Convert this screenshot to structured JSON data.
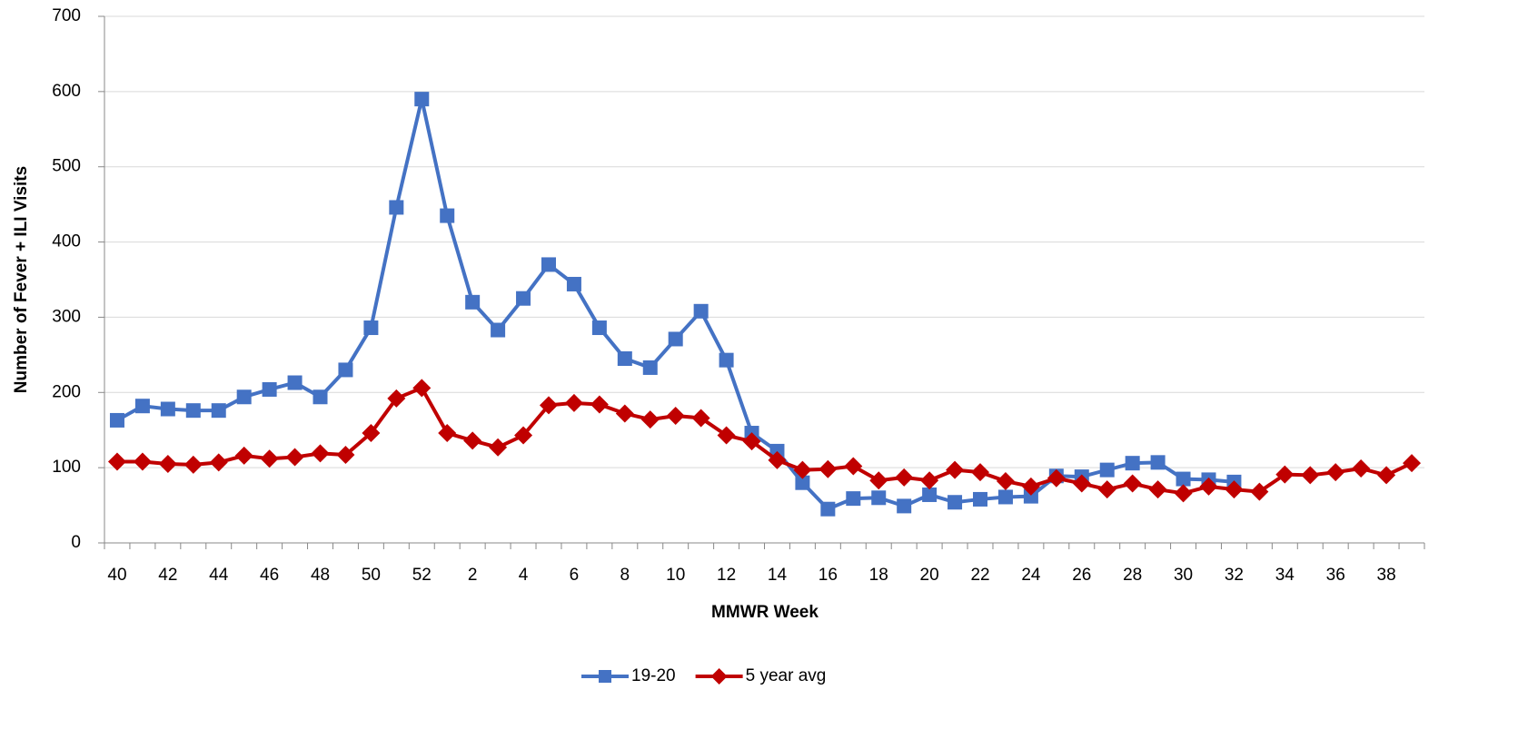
{
  "chart_data": {
    "type": "line",
    "x_label": "MMWR Week",
    "y_label": "Number of Fever + ILI Visits",
    "categories": [
      40,
      null,
      42,
      null,
      44,
      null,
      46,
      null,
      48,
      null,
      50,
      null,
      52,
      null,
      2,
      null,
      4,
      null,
      6,
      null,
      8,
      null,
      10,
      null,
      12,
      null,
      14,
      null,
      16,
      null,
      18,
      null,
      20,
      null,
      22,
      null,
      24,
      null,
      26,
      null,
      28,
      null,
      30,
      null,
      32,
      null,
      34,
      null,
      36,
      null,
      38,
      null
    ],
    "series": [
      {
        "name": "19-20",
        "color": "#4472c4",
        "marker": "square",
        "values": [
          163,
          182,
          178,
          176,
          176,
          194,
          204,
          213,
          194,
          230,
          286,
          446,
          590,
          435,
          320,
          283,
          325,
          370,
          344,
          286,
          245,
          233,
          271,
          308,
          243,
          146,
          122,
          80,
          45,
          59,
          60,
          49,
          64,
          54,
          58,
          61,
          62,
          89,
          88,
          97,
          106,
          107,
          85,
          84,
          81,
          null,
          null,
          null,
          null,
          null,
          null,
          null
        ]
      },
      {
        "name": "5 year avg",
        "color": "#c00000",
        "marker": "diamond",
        "values": [
          108,
          108,
          105,
          104,
          107,
          116,
          112,
          114,
          119,
          117,
          146,
          192,
          206,
          146,
          136,
          127,
          143,
          183,
          186,
          184,
          172,
          164,
          169,
          166,
          143,
          135,
          110,
          97,
          98,
          102,
          83,
          87,
          83,
          97,
          94,
          82,
          75,
          86,
          79,
          71,
          79,
          71,
          66,
          75,
          71,
          68,
          91,
          90,
          94,
          99,
          90,
          106
        ]
      }
    ],
    "ylim": [
      0,
      700
    ],
    "yticks": [
      0,
      100,
      200,
      300,
      400,
      500,
      600,
      700
    ],
    "grid": true,
    "legend": "bottom"
  }
}
